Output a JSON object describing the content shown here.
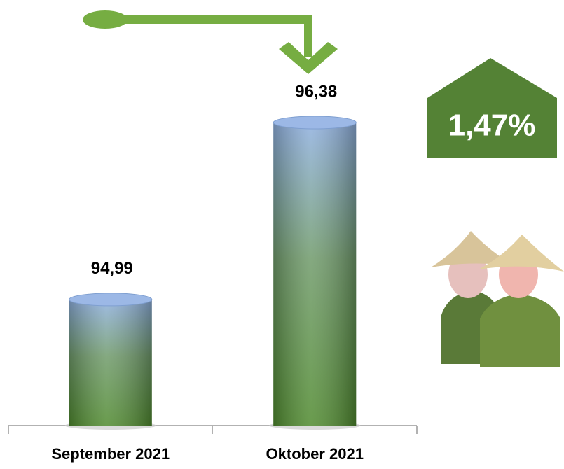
{
  "chart_data": {
    "type": "bar",
    "categories": [
      "September 2021",
      "Oktober 2021"
    ],
    "values": [
      94.99,
      96.38
    ],
    "value_labels": [
      "94,99",
      "96,38"
    ],
    "ylim": [
      94,
      96.6
    ],
    "annotation": "1,47%"
  }
}
